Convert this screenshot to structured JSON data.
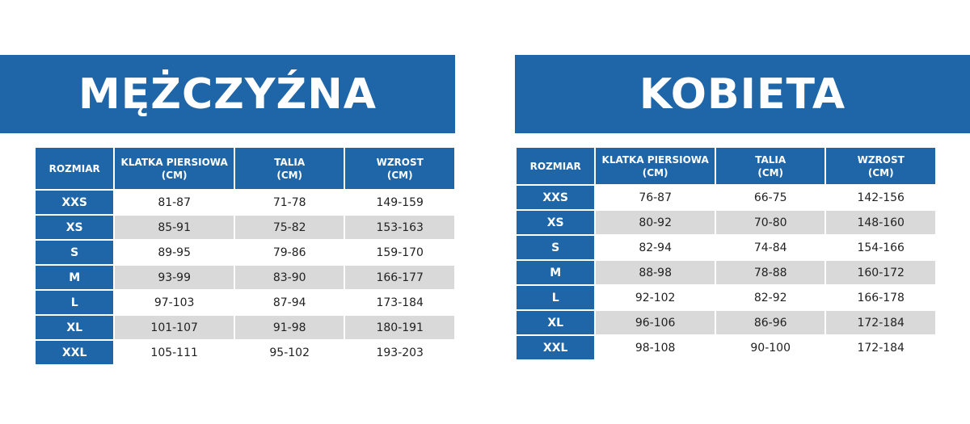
{
  "men": {
    "title": "MĘŻCZYŹNA",
    "headers": {
      "size": "ROZMIAR",
      "chest_line1": "KLATKA PIERSIOWA",
      "chest_line2": "(CM)",
      "waist_line1": "TALIA",
      "waist_line2": "(CM)",
      "height_line1": "WZROST",
      "height_line2": "(CM)"
    },
    "rows": [
      {
        "size": "XXS",
        "chest": "81-87",
        "waist": "71-78",
        "height": "149-159"
      },
      {
        "size": "XS",
        "chest": "85-91",
        "waist": "75-82",
        "height": "153-163"
      },
      {
        "size": "S",
        "chest": "89-95",
        "waist": "79-86",
        "height": "159-170"
      },
      {
        "size": "M",
        "chest": "93-99",
        "waist": "83-90",
        "height": "166-177"
      },
      {
        "size": "L",
        "chest": "97-103",
        "waist": "87-94",
        "height": "173-184"
      },
      {
        "size": "XL",
        "chest": "101-107",
        "waist": "91-98",
        "height": "180-191"
      },
      {
        "size": "XXL",
        "chest": "105-111",
        "waist": "95-102",
        "height": "193-203"
      }
    ]
  },
  "women": {
    "title": "KOBIETA",
    "headers": {
      "size": "ROZMIAR",
      "chest_line1": "KLATKA PIERSIOWA",
      "chest_line2": "(CM)",
      "waist_line1": "TALIA",
      "waist_line2": "(CM)",
      "height_line1": "WZROST",
      "height_line2": "(CM)"
    },
    "rows": [
      {
        "size": "XXS",
        "chest": "76-87",
        "waist": "66-75",
        "height": "142-156"
      },
      {
        "size": "XS",
        "chest": "80-92",
        "waist": "70-80",
        "height": "148-160"
      },
      {
        "size": "S",
        "chest": "82-94",
        "waist": "74-84",
        "height": "154-166"
      },
      {
        "size": "M",
        "chest": "88-98",
        "waist": "78-88",
        "height": "160-172"
      },
      {
        "size": "L",
        "chest": "92-102",
        "waist": "82-92",
        "height": "166-178"
      },
      {
        "size": "XL",
        "chest": "96-106",
        "waist": "86-96",
        "height": "172-184"
      },
      {
        "size": "XXL",
        "chest": "98-108",
        "waist": "90-100",
        "height": "172-184"
      }
    ]
  },
  "colors": {
    "brand_blue": "#1f66a8",
    "stripe_gray": "#d9d9d9"
  }
}
